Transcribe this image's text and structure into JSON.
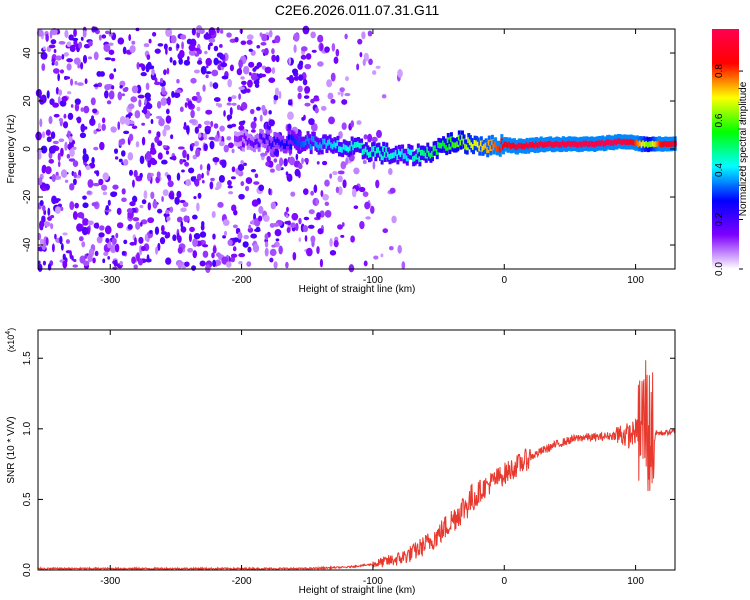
{
  "title": "C2E6.2026.011.07.31.G11",
  "chart_data": [
    {
      "type": "heatmap",
      "xlabel": "Height of straight line (km)",
      "ylabel": "Frequency (Hz)",
      "xlim": [
        -355,
        130
      ],
      "ylim": [
        -50,
        50
      ],
      "xticks": [
        -300,
        -200,
        -100,
        0,
        100
      ],
      "yticks": [
        -40,
        -20,
        0,
        20,
        40
      ],
      "colorbar": {
        "label": "Normalized spectral amplitude",
        "ticks": [
          "0.0",
          "0.2",
          "0.4",
          "0.6",
          "0.8"
        ],
        "tick_values": [
          0.0,
          0.2,
          0.4,
          0.6,
          0.8
        ],
        "range": [
          0,
          0.97
        ],
        "colors": [
          "#ffffff",
          "#7d00ff",
          "#0000ff",
          "#00ffff",
          "#00ff00",
          "#ffff00",
          "#ff0000",
          "#ff0050"
        ]
      },
      "ridge": {
        "x": [
          -205,
          -170,
          -150,
          -130,
          -110,
          -90,
          -75,
          -60,
          -45,
          -35,
          -20,
          -10,
          0,
          10,
          30,
          50,
          70,
          85,
          95,
          105,
          110,
          120,
          130
        ],
        "frequency": [
          4,
          3,
          3,
          1,
          0,
          -2,
          -3,
          -2,
          2,
          3,
          2,
          1,
          2,
          1,
          2,
          2,
          2,
          3,
          3,
          2,
          2,
          2,
          2
        ],
        "amplitude": [
          0.12,
          0.25,
          0.35,
          0.4,
          0.45,
          0.45,
          0.4,
          0.5,
          0.55,
          0.6,
          0.7,
          0.75,
          0.85,
          0.9,
          0.92,
          0.94,
          0.95,
          0.95,
          0.9,
          0.7,
          0.6,
          0.85,
          0.9
        ]
      }
    },
    {
      "type": "line",
      "xlabel": "Height of straight line (km)",
      "ylabel": "SNR (10 * V/V)",
      "yscale_label": "(x10",
      "yscale_exp": "4",
      "ylabel_suffix": ")",
      "xlim": [
        -355,
        130
      ],
      "ylim": [
        0,
        1.7
      ],
      "xticks": [
        -300,
        -200,
        -100,
        0,
        100
      ],
      "yticks": [
        "0.0",
        "0.5",
        "1.0",
        "1.5"
      ],
      "ytick_values": [
        0.0,
        0.5,
        1.0,
        1.5
      ],
      "color": "#e8392e",
      "series": [
        {
          "x": [
            -355,
            -300,
            -250,
            -200,
            -150,
            -120,
            -100,
            -80,
            -70,
            -60,
            -50,
            -40,
            -30,
            -20,
            -10,
            0,
            10,
            20,
            30,
            40,
            50,
            60,
            70,
            80,
            90,
            95,
            100,
            105,
            108,
            110,
            112,
            115,
            120,
            130
          ],
          "values": [
            0.01,
            0.01,
            0.01,
            0.01,
            0.01,
            0.02,
            0.04,
            0.08,
            0.12,
            0.18,
            0.25,
            0.35,
            0.45,
            0.55,
            0.62,
            0.68,
            0.74,
            0.8,
            0.85,
            0.89,
            0.92,
            0.94,
            0.94,
            0.95,
            0.96,
            0.95,
            0.98,
            1.0,
            1.1,
            0.95,
            1.0,
            0.97,
            0.97,
            0.98
          ]
        }
      ]
    }
  ]
}
